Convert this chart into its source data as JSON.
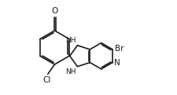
{
  "bg_color": "#ffffff",
  "line_color": "#1a1a1a",
  "lw": 1.2,
  "font_size": 7.5,
  "figsize": [
    2.25,
    1.21
  ],
  "dpi": 100,
  "xlim": [
    -0.05,
    1.2
  ],
  "ylim": [
    0.02,
    0.98
  ]
}
